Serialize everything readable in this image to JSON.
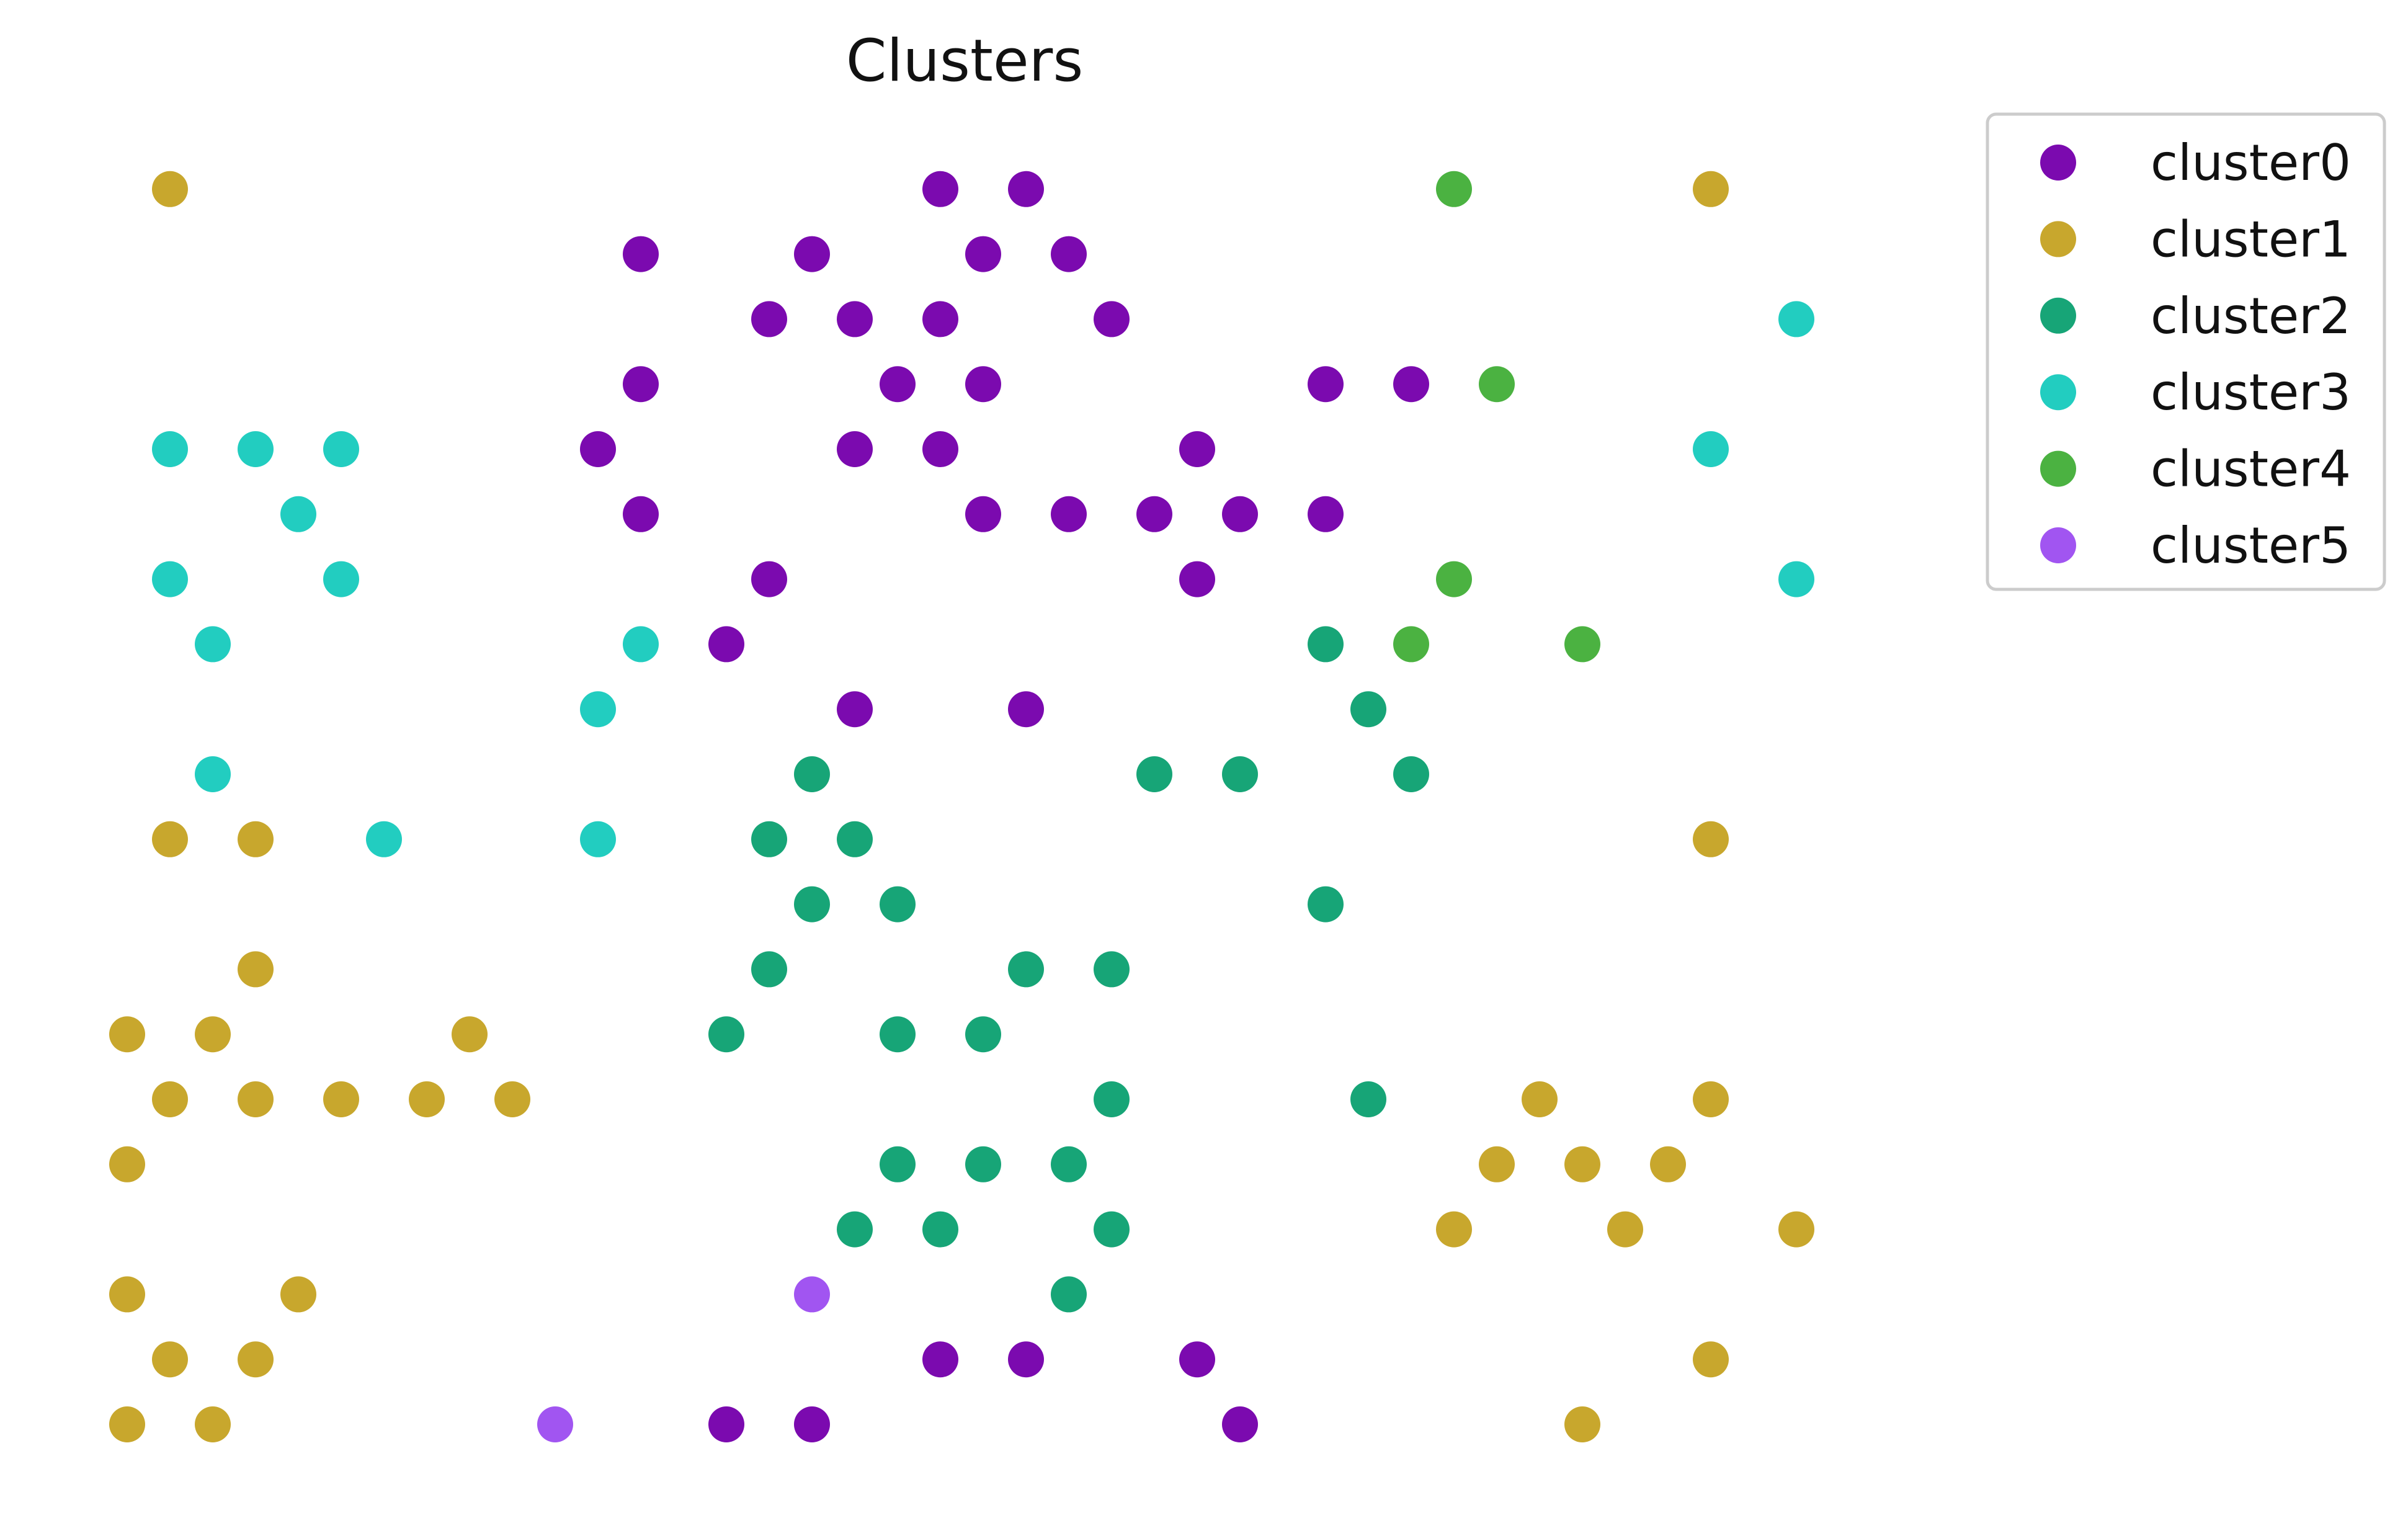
{
  "chart_data": {
    "type": "scatter",
    "title": "Clusters",
    "xlabel": "",
    "ylabel": "",
    "xlim": [
      -0.5,
      40.5
    ],
    "ylim": [
      -0.5,
      21.5
    ],
    "grid": false,
    "axes_visible": false,
    "legend_position": "upper-right-outside",
    "series": [
      {
        "name": "cluster0",
        "color": "#7b0aaf",
        "points": [
          [
            19,
            20
          ],
          [
            21,
            20
          ],
          [
            12,
            19
          ],
          [
            16,
            19
          ],
          [
            20,
            19
          ],
          [
            22,
            19
          ],
          [
            15,
            18
          ],
          [
            17,
            18
          ],
          [
            19,
            18
          ],
          [
            23,
            18
          ],
          [
            12,
            17
          ],
          [
            18,
            17
          ],
          [
            20,
            17
          ],
          [
            28,
            17
          ],
          [
            30,
            17
          ],
          [
            11,
            16
          ],
          [
            17,
            16
          ],
          [
            19,
            16
          ],
          [
            25,
            16
          ],
          [
            12,
            15
          ],
          [
            20,
            15
          ],
          [
            22,
            15
          ],
          [
            24,
            15
          ],
          [
            26,
            15
          ],
          [
            28,
            15
          ],
          [
            15,
            14
          ],
          [
            25,
            14
          ],
          [
            14,
            13
          ],
          [
            17,
            12
          ],
          [
            21,
            12
          ],
          [
            19,
            2
          ],
          [
            21,
            2
          ],
          [
            25,
            2
          ],
          [
            14,
            1
          ],
          [
            16,
            1
          ],
          [
            26,
            1
          ]
        ]
      },
      {
        "name": "cluster1",
        "color": "#c8a72d",
        "points": [
          [
            1,
            20
          ],
          [
            37,
            20
          ],
          [
            1,
            10
          ],
          [
            3,
            10
          ],
          [
            37,
            10
          ],
          [
            3,
            8
          ],
          [
            0,
            7
          ],
          [
            2,
            7
          ],
          [
            8,
            7
          ],
          [
            1,
            6
          ],
          [
            3,
            6
          ],
          [
            5,
            6
          ],
          [
            7,
            6
          ],
          [
            9,
            6
          ],
          [
            33,
            6
          ],
          [
            37,
            6
          ],
          [
            0,
            5
          ],
          [
            32,
            5
          ],
          [
            34,
            5
          ],
          [
            36,
            5
          ],
          [
            31,
            4
          ],
          [
            35,
            4
          ],
          [
            39,
            4
          ],
          [
            0,
            3
          ],
          [
            4,
            3
          ],
          [
            1,
            2
          ],
          [
            3,
            2
          ],
          [
            37,
            2
          ],
          [
            0,
            1
          ],
          [
            2,
            1
          ],
          [
            34,
            1
          ]
        ]
      },
      {
        "name": "cluster2",
        "color": "#17a577",
        "points": [
          [
            28,
            13
          ],
          [
            29,
            12
          ],
          [
            16,
            11
          ],
          [
            24,
            11
          ],
          [
            26,
            11
          ],
          [
            30,
            11
          ],
          [
            15,
            10
          ],
          [
            17,
            10
          ],
          [
            16,
            9
          ],
          [
            18,
            9
          ],
          [
            28,
            9
          ],
          [
            15,
            8
          ],
          [
            21,
            8
          ],
          [
            23,
            8
          ],
          [
            14,
            7
          ],
          [
            18,
            7
          ],
          [
            20,
            7
          ],
          [
            23,
            6
          ],
          [
            29,
            6
          ],
          [
            18,
            5
          ],
          [
            20,
            5
          ],
          [
            22,
            5
          ],
          [
            17,
            4
          ],
          [
            19,
            4
          ],
          [
            23,
            4
          ],
          [
            22,
            3
          ]
        ]
      },
      {
        "name": "cluster3",
        "color": "#22cdc0",
        "points": [
          [
            39,
            18
          ],
          [
            1,
            16
          ],
          [
            3,
            16
          ],
          [
            5,
            16
          ],
          [
            37,
            16
          ],
          [
            4,
            15
          ],
          [
            1,
            14
          ],
          [
            5,
            14
          ],
          [
            39,
            14
          ],
          [
            2,
            13
          ],
          [
            12,
            13
          ],
          [
            11,
            12
          ],
          [
            2,
            11
          ],
          [
            6,
            10
          ],
          [
            11,
            10
          ]
        ]
      },
      {
        "name": "cluster4",
        "color": "#4bb241",
        "points": [
          [
            31,
            20
          ],
          [
            32,
            17
          ],
          [
            31,
            14
          ],
          [
            30,
            13
          ],
          [
            34,
            13
          ]
        ]
      },
      {
        "name": "cluster5",
        "color": "#a155f1",
        "points": [
          [
            16,
            3
          ],
          [
            10,
            1
          ]
        ]
      }
    ]
  }
}
